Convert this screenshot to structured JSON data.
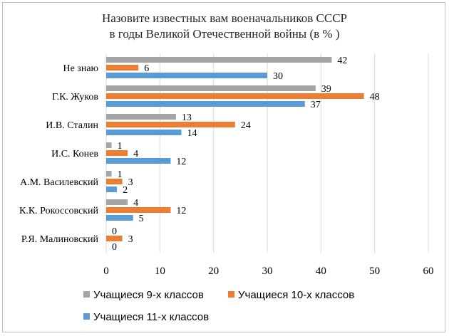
{
  "chart_data": {
    "type": "bar",
    "orientation": "horizontal",
    "title_lines": [
      "Назовите известных вам военачальников СССР",
      "в годы Великой Отечественной войны (в % )"
    ],
    "categories": [
      "Не знаю",
      "Г.К. Жуков",
      "И.В. Сталин",
      "И.С. Конев",
      "А.М. Василевский",
      "К.К. Рокоссовский",
      "Р.Я. Малиновский"
    ],
    "series": [
      {
        "name": "Учащиеся 9-х классов",
        "color": "#a5a5a5",
        "values": [
          42,
          39,
          13,
          1,
          1,
          4,
          0
        ]
      },
      {
        "name": "Учащиеся 10-х классов",
        "color": "#ed7d31",
        "values": [
          6,
          48,
          24,
          4,
          3,
          12,
          3
        ]
      },
      {
        "name": "Учащиеся 11-х классов",
        "color": "#5b9bd5",
        "values": [
          30,
          37,
          14,
          12,
          2,
          5,
          0
        ]
      }
    ],
    "xlim": [
      0,
      60
    ],
    "xticks": [
      "0",
      "10",
      "20",
      "30",
      "40",
      "50",
      "60"
    ],
    "grid": "vertical",
    "legend_position": "bottom"
  }
}
